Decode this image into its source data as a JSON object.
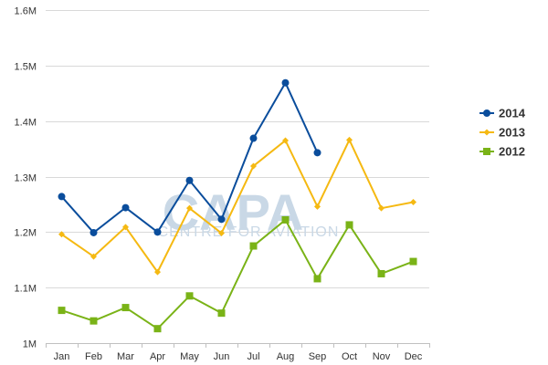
{
  "chart_data": {
    "type": "line",
    "categories": [
      "Jan",
      "Feb",
      "Mar",
      "Apr",
      "May",
      "Jun",
      "Jul",
      "Aug",
      "Sep",
      "Oct",
      "Nov",
      "Dec"
    ],
    "y_ticks": [
      1.0,
      1.1,
      1.2,
      1.3,
      1.4,
      1.5,
      1.6
    ],
    "y_tick_labels": [
      "1M",
      "1.1M",
      "1.2M",
      "1.3M",
      "1.4M",
      "1.5M",
      "1.6M"
    ],
    "ylim": [
      1.0,
      1.6
    ],
    "y_unit": "M",
    "grid": true,
    "legend_position": "right",
    "series": [
      {
        "name": "2014",
        "color": "#0a4d9c",
        "marker": "circle",
        "values": [
          1.264,
          1.199,
          1.244,
          1.2,
          1.293,
          1.223,
          1.369,
          1.469,
          1.343,
          null,
          null,
          null
        ]
      },
      {
        "name": "2013",
        "color": "#f5b912",
        "marker": "diamond",
        "values": [
          1.196,
          1.156,
          1.209,
          1.128,
          1.243,
          1.198,
          1.319,
          1.365,
          1.246,
          1.366,
          1.243,
          1.254
        ]
      },
      {
        "name": "2012",
        "color": "#7ab317",
        "marker": "square",
        "values": [
          1.059,
          1.04,
          1.064,
          1.026,
          1.085,
          1.054,
          1.175,
          1.222,
          1.116,
          1.213,
          1.125,
          1.147
        ]
      }
    ],
    "watermark": {
      "text": "CAPA",
      "subtext": "CENTRE FOR AVIATION"
    }
  }
}
